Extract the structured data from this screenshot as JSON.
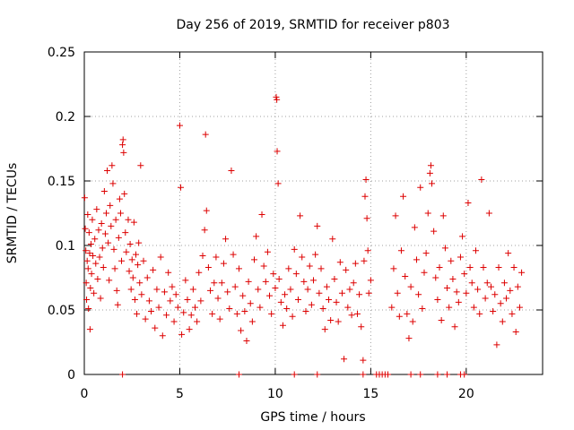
{
  "chart_data": {
    "type": "scatter",
    "title": "Day 256 of 2019, SRMTID for receiver p803",
    "xlabel": "GPS time / hours",
    "ylabel": "SRMTID / TECUs",
    "xlim": [
      0,
      24
    ],
    "ylim": [
      0,
      0.25
    ],
    "x_ticks": [
      0,
      5,
      10,
      15,
      20
    ],
    "x_tick_labels": [
      "0",
      "5",
      "10",
      "15",
      "20"
    ],
    "y_ticks": [
      0,
      0.05,
      0.1,
      0.15,
      0.2,
      0.25
    ],
    "y_tick_labels": [
      "0",
      "0.05",
      "0.1",
      "0.15",
      "0.2",
      "0.25"
    ],
    "grid": true,
    "marker": "plus",
    "color": "#dd0000",
    "series": [
      {
        "name": "SRMTID",
        "points": [
          [
            0.02,
            0.137
          ],
          [
            0.05,
            0.113
          ],
          [
            0.08,
            0.096
          ],
          [
            0.1,
            0.071
          ],
          [
            0.12,
            0.058
          ],
          [
            0.15,
            0.088
          ],
          [
            0.18,
            0.124
          ],
          [
            0.2,
            0.082
          ],
          [
            0.22,
            0.051
          ],
          [
            0.25,
            0.11
          ],
          [
            0.28,
            0.094
          ],
          [
            0.3,
            0.035
          ],
          [
            0.32,
            0.067
          ],
          [
            0.35,
            0.101
          ],
          [
            0.38,
            0.078
          ],
          [
            0.42,
            0.12
          ],
          [
            0.45,
            0.092
          ],
          [
            0.5,
            0.063
          ],
          [
            0.55,
            0.105
          ],
          [
            0.6,
            0.086
          ],
          [
            0.65,
            0.128
          ],
          [
            0.7,
            0.074
          ],
          [
            0.75,
            0.112
          ],
          [
            0.8,
            0.091
          ],
          [
            0.85,
            0.059
          ],
          [
            0.9,
            0.117
          ],
          [
            0.95,
            0.098
          ],
          [
            1.0,
            0.083
          ],
          [
            1.05,
            0.142
          ],
          [
            1.1,
            0.109
          ],
          [
            1.15,
            0.125
          ],
          [
            1.2,
            0.158
          ],
          [
            1.25,
            0.102
          ],
          [
            1.3,
            0.073
          ],
          [
            1.35,
            0.131
          ],
          [
            1.4,
            0.115
          ],
          [
            1.45,
            0.162
          ],
          [
            1.5,
            0.148
          ],
          [
            1.55,
            0.097
          ],
          [
            1.6,
            0.082
          ],
          [
            1.65,
            0.12
          ],
          [
            1.7,
            0.065
          ],
          [
            1.75,
            0.054
          ],
          [
            1.8,
            0.106
          ],
          [
            1.85,
            0.136
          ],
          [
            1.9,
            0.125
          ],
          [
            1.95,
            0.088
          ],
          [
            2.0,
            0.178
          ],
          [
            2.03,
            0.182
          ],
          [
            2.06,
            0.172
          ],
          [
            2.1,
            0.14
          ],
          [
            2.15,
            0.11
          ],
          [
            2.2,
            0.095
          ],
          [
            2.3,
            0.12
          ],
          [
            2.35,
            0.08
          ],
          [
            2.4,
            0.101
          ],
          [
            2.45,
            0.066
          ],
          [
            2.5,
            0.089
          ],
          [
            2.55,
            0.075
          ],
          [
            2.6,
            0.118
          ],
          [
            2.65,
            0.058
          ],
          [
            2.7,
            0.093
          ],
          [
            2.75,
            0.047
          ],
          [
            2.8,
            0.085
          ],
          [
            2.85,
            0.102
          ],
          [
            2.9,
            0.071
          ],
          [
            2.95,
            0.162
          ],
          [
            3.0,
            0.062
          ],
          [
            3.1,
            0.088
          ],
          [
            3.2,
            0.043
          ],
          [
            3.3,
            0.075
          ],
          [
            3.4,
            0.057
          ],
          [
            3.5,
            0.049
          ],
          [
            3.6,
            0.081
          ],
          [
            3.7,
            0.036
          ],
          [
            3.8,
            0.066
          ],
          [
            3.9,
            0.052
          ],
          [
            4.0,
            0.091
          ],
          [
            4.1,
            0.03
          ],
          [
            4.2,
            0.064
          ],
          [
            4.3,
            0.046
          ],
          [
            4.4,
            0.079
          ],
          [
            4.5,
            0.057
          ],
          [
            4.6,
            0.068
          ],
          [
            4.7,
            0.041
          ],
          [
            4.8,
            0.062
          ],
          [
            4.9,
            0.052
          ],
          [
            5.0,
            0.193
          ],
          [
            5.05,
            0.145
          ],
          [
            5.1,
            0.031
          ],
          [
            5.2,
            0.048
          ],
          [
            5.3,
            0.073
          ],
          [
            5.4,
            0.058
          ],
          [
            5.5,
            0.035
          ],
          [
            5.6,
            0.046
          ],
          [
            5.7,
            0.066
          ],
          [
            5.8,
            0.052
          ],
          [
            5.9,
            0.041
          ],
          [
            6.0,
            0.079
          ],
          [
            6.1,
            0.057
          ],
          [
            6.2,
            0.092
          ],
          [
            6.3,
            0.112
          ],
          [
            6.35,
            0.186
          ],
          [
            6.4,
            0.127
          ],
          [
            6.5,
            0.083
          ],
          [
            6.6,
            0.065
          ],
          [
            6.7,
            0.047
          ],
          [
            6.8,
            0.071
          ],
          [
            6.9,
            0.091
          ],
          [
            7.0,
            0.059
          ],
          [
            7.1,
            0.043
          ],
          [
            7.2,
            0.071
          ],
          [
            7.3,
            0.086
          ],
          [
            7.4,
            0.105
          ],
          [
            7.5,
            0.064
          ],
          [
            7.6,
            0.051
          ],
          [
            7.7,
            0.158
          ],
          [
            7.8,
            0.093
          ],
          [
            7.9,
            0.068
          ],
          [
            8.0,
            0.047
          ],
          [
            8.1,
            0.082
          ],
          [
            8.2,
            0.034
          ],
          [
            8.3,
            0.061
          ],
          [
            8.4,
            0.049
          ],
          [
            8.5,
            0.026
          ],
          [
            8.6,
            0.072
          ],
          [
            8.7,
            0.055
          ],
          [
            8.8,
            0.041
          ],
          [
            8.9,
            0.089
          ],
          [
            9.0,
            0.107
          ],
          [
            9.1,
            0.066
          ],
          [
            9.2,
            0.052
          ],
          [
            9.3,
            0.124
          ],
          [
            9.4,
            0.084
          ],
          [
            9.5,
            0.072
          ],
          [
            9.6,
            0.095
          ],
          [
            9.7,
            0.061
          ],
          [
            9.8,
            0.047
          ],
          [
            9.9,
            0.078
          ],
          [
            10.0,
            0.067
          ],
          [
            10.05,
            0.215
          ],
          [
            10.08,
            0.213
          ],
          [
            10.1,
            0.173
          ],
          [
            10.15,
            0.148
          ],
          [
            10.2,
            0.074
          ],
          [
            10.3,
            0.056
          ],
          [
            10.4,
            0.038
          ],
          [
            10.5,
            0.062
          ],
          [
            10.6,
            0.051
          ],
          [
            10.7,
            0.082
          ],
          [
            10.8,
            0.066
          ],
          [
            10.9,
            0.045
          ],
          [
            11.0,
            0.097
          ],
          [
            11.1,
            0.078
          ],
          [
            11.2,
            0.058
          ],
          [
            11.3,
            0.123
          ],
          [
            11.4,
            0.091
          ],
          [
            11.5,
            0.072
          ],
          [
            11.6,
            0.049
          ],
          [
            11.7,
            0.066
          ],
          [
            11.8,
            0.084
          ],
          [
            11.9,
            0.054
          ],
          [
            12.0,
            0.073
          ],
          [
            12.1,
            0.093
          ],
          [
            12.2,
            0.115
          ],
          [
            12.3,
            0.063
          ],
          [
            12.4,
            0.082
          ],
          [
            12.5,
            0.051
          ],
          [
            12.6,
            0.035
          ],
          [
            12.7,
            0.068
          ],
          [
            12.8,
            0.058
          ],
          [
            12.9,
            0.042
          ],
          [
            13.0,
            0.105
          ],
          [
            13.1,
            0.074
          ],
          [
            13.2,
            0.056
          ],
          [
            13.3,
            0.041
          ],
          [
            13.4,
            0.087
          ],
          [
            13.5,
            0.063
          ],
          [
            13.6,
            0.012
          ],
          [
            13.7,
            0.081
          ],
          [
            13.8,
            0.052
          ],
          [
            13.9,
            0.066
          ],
          [
            14.0,
            0.046
          ],
          [
            14.1,
            0.071
          ],
          [
            14.2,
            0.086
          ],
          [
            14.3,
            0.047
          ],
          [
            14.4,
            0.062
          ],
          [
            14.5,
            0.037
          ],
          [
            14.6,
            0.011
          ],
          [
            14.65,
            0.088
          ],
          [
            14.7,
            0.138
          ],
          [
            14.75,
            0.151
          ],
          [
            14.8,
            0.121
          ],
          [
            14.85,
            0.096
          ],
          [
            14.9,
            0.063
          ],
          [
            15.0,
            0.073
          ],
          [
            16.1,
            0.052
          ],
          [
            16.2,
            0.082
          ],
          [
            16.3,
            0.123
          ],
          [
            16.4,
            0.063
          ],
          [
            16.5,
            0.045
          ],
          [
            16.6,
            0.096
          ],
          [
            16.7,
            0.138
          ],
          [
            16.8,
            0.076
          ],
          [
            16.9,
            0.047
          ],
          [
            17.0,
            0.028
          ],
          [
            17.1,
            0.068
          ],
          [
            17.2,
            0.041
          ],
          [
            17.3,
            0.114
          ],
          [
            17.4,
            0.089
          ],
          [
            17.5,
            0.062
          ],
          [
            17.6,
            0.145
          ],
          [
            17.7,
            0.051
          ],
          [
            17.8,
            0.079
          ],
          [
            17.9,
            0.094
          ],
          [
            18.0,
            0.125
          ],
          [
            18.1,
            0.156
          ],
          [
            18.15,
            0.162
          ],
          [
            18.2,
            0.148
          ],
          [
            18.3,
            0.111
          ],
          [
            18.4,
            0.075
          ],
          [
            18.5,
            0.058
          ],
          [
            18.6,
            0.083
          ],
          [
            18.7,
            0.042
          ],
          [
            18.8,
            0.123
          ],
          [
            18.9,
            0.098
          ],
          [
            19.0,
            0.067
          ],
          [
            19.1,
            0.052
          ],
          [
            19.2,
            0.088
          ],
          [
            19.3,
            0.074
          ],
          [
            19.4,
            0.037
          ],
          [
            19.5,
            0.064
          ],
          [
            19.6,
            0.056
          ],
          [
            19.7,
            0.091
          ],
          [
            19.8,
            0.107
          ],
          [
            19.9,
            0.078
          ],
          [
            20.0,
            0.063
          ],
          [
            20.1,
            0.133
          ],
          [
            20.2,
            0.083
          ],
          [
            20.3,
            0.071
          ],
          [
            20.4,
            0.052
          ],
          [
            20.5,
            0.096
          ],
          [
            20.6,
            0.066
          ],
          [
            20.7,
            0.047
          ],
          [
            20.8,
            0.151
          ],
          [
            20.9,
            0.083
          ],
          [
            21.0,
            0.059
          ],
          [
            21.1,
            0.071
          ],
          [
            21.2,
            0.125
          ],
          [
            21.3,
            0.068
          ],
          [
            21.4,
            0.049
          ],
          [
            21.5,
            0.062
          ],
          [
            21.6,
            0.023
          ],
          [
            21.7,
            0.083
          ],
          [
            21.8,
            0.055
          ],
          [
            21.9,
            0.041
          ],
          [
            22.0,
            0.071
          ],
          [
            22.1,
            0.059
          ],
          [
            22.2,
            0.094
          ],
          [
            22.3,
            0.065
          ],
          [
            22.4,
            0.047
          ],
          [
            22.5,
            0.083
          ],
          [
            22.6,
            0.033
          ],
          [
            22.7,
            0.068
          ],
          [
            22.8,
            0.052
          ],
          [
            22.9,
            0.079
          ]
        ],
        "zero_points": [
          2.0,
          8.1,
          11.0,
          12.2,
          14.6,
          15.3,
          15.45,
          15.6,
          15.75,
          15.9,
          17.1,
          17.6,
          18.5,
          19.0,
          19.7,
          19.9
        ]
      }
    ]
  }
}
